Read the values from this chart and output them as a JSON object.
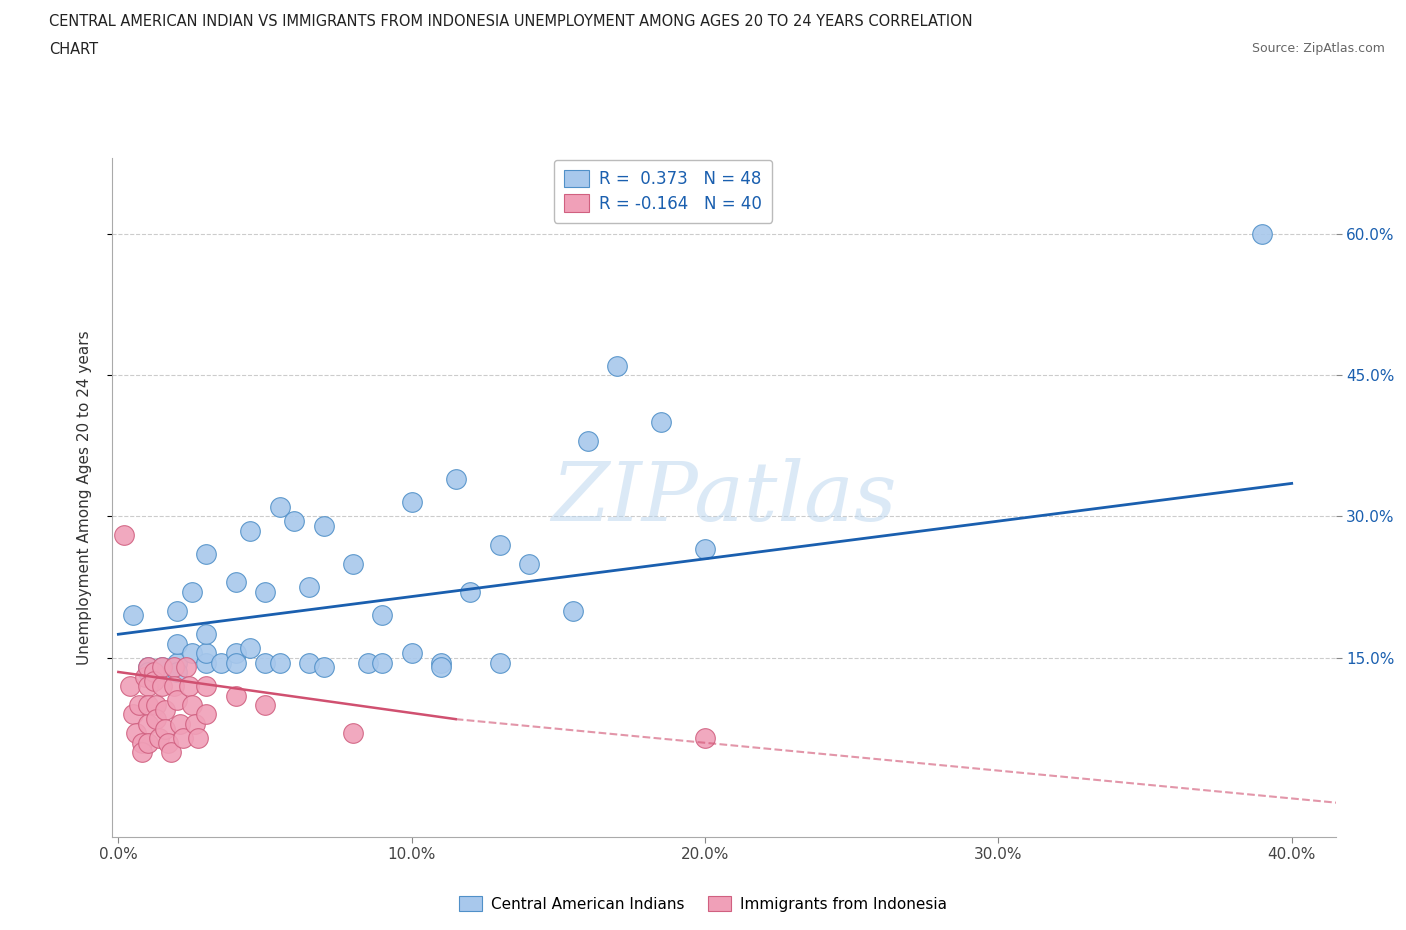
{
  "title_line1": "CENTRAL AMERICAN INDIAN VS IMMIGRANTS FROM INDONESIA UNEMPLOYMENT AMONG AGES 20 TO 24 YEARS CORRELATION",
  "title_line2": "CHART",
  "source": "Source: ZipAtlas.com",
  "ylabel": "Unemployment Among Ages 20 to 24 years",
  "xlim": [
    -0.002,
    0.415
  ],
  "ylim": [
    -0.04,
    0.68
  ],
  "xticks": [
    0.0,
    0.1,
    0.2,
    0.3,
    0.4
  ],
  "xticklabels": [
    "0.0%",
    "10.0%",
    "20.0%",
    "30.0%",
    "40.0%"
  ],
  "yticks": [
    0.15,
    0.3,
    0.45,
    0.6
  ],
  "yticklabels": [
    "15.0%",
    "30.0%",
    "45.0%",
    "60.0%"
  ],
  "legend_r1": "R =  0.373   N = 48",
  "legend_r2": "R = -0.164   N = 40",
  "blue_color": "#A8C8EC",
  "blue_edge_color": "#5090C8",
  "pink_color": "#F0A0B8",
  "pink_edge_color": "#D06080",
  "blue_line_color": "#1A5FAF",
  "pink_line_color": "#D05070",
  "watermark": "ZIPatlas",
  "legend_text_color": "#1A5FAF",
  "blue_scatter": [
    [
      0.005,
      0.195
    ],
    [
      0.01,
      0.14
    ],
    [
      0.01,
      0.135
    ],
    [
      0.015,
      0.14
    ],
    [
      0.02,
      0.2
    ],
    [
      0.02,
      0.145
    ],
    [
      0.02,
      0.135
    ],
    [
      0.02,
      0.165
    ],
    [
      0.025,
      0.22
    ],
    [
      0.025,
      0.155
    ],
    [
      0.03,
      0.26
    ],
    [
      0.03,
      0.145
    ],
    [
      0.03,
      0.155
    ],
    [
      0.03,
      0.175
    ],
    [
      0.035,
      0.145
    ],
    [
      0.04,
      0.23
    ],
    [
      0.04,
      0.155
    ],
    [
      0.04,
      0.145
    ],
    [
      0.045,
      0.16
    ],
    [
      0.045,
      0.285
    ],
    [
      0.05,
      0.22
    ],
    [
      0.05,
      0.145
    ],
    [
      0.055,
      0.31
    ],
    [
      0.055,
      0.145
    ],
    [
      0.06,
      0.295
    ],
    [
      0.065,
      0.145
    ],
    [
      0.065,
      0.225
    ],
    [
      0.07,
      0.29
    ],
    [
      0.07,
      0.14
    ],
    [
      0.08,
      0.25
    ],
    [
      0.085,
      0.145
    ],
    [
      0.09,
      0.195
    ],
    [
      0.09,
      0.145
    ],
    [
      0.1,
      0.315
    ],
    [
      0.1,
      0.155
    ],
    [
      0.11,
      0.145
    ],
    [
      0.11,
      0.14
    ],
    [
      0.115,
      0.34
    ],
    [
      0.12,
      0.22
    ],
    [
      0.13,
      0.145
    ],
    [
      0.13,
      0.27
    ],
    [
      0.14,
      0.25
    ],
    [
      0.155,
      0.2
    ],
    [
      0.16,
      0.38
    ],
    [
      0.17,
      0.46
    ],
    [
      0.185,
      0.4
    ],
    [
      0.2,
      0.265
    ],
    [
      0.39,
      0.6
    ]
  ],
  "pink_scatter": [
    [
      0.002,
      0.28
    ],
    [
      0.004,
      0.12
    ],
    [
      0.005,
      0.09
    ],
    [
      0.006,
      0.07
    ],
    [
      0.007,
      0.1
    ],
    [
      0.008,
      0.06
    ],
    [
      0.008,
      0.05
    ],
    [
      0.009,
      0.13
    ],
    [
      0.01,
      0.14
    ],
    [
      0.01,
      0.12
    ],
    [
      0.01,
      0.1
    ],
    [
      0.01,
      0.08
    ],
    [
      0.01,
      0.06
    ],
    [
      0.012,
      0.135
    ],
    [
      0.012,
      0.125
    ],
    [
      0.013,
      0.1
    ],
    [
      0.013,
      0.085
    ],
    [
      0.014,
      0.065
    ],
    [
      0.015,
      0.14
    ],
    [
      0.015,
      0.12
    ],
    [
      0.016,
      0.095
    ],
    [
      0.016,
      0.075
    ],
    [
      0.017,
      0.06
    ],
    [
      0.018,
      0.05
    ],
    [
      0.019,
      0.14
    ],
    [
      0.019,
      0.12
    ],
    [
      0.02,
      0.105
    ],
    [
      0.021,
      0.08
    ],
    [
      0.022,
      0.065
    ],
    [
      0.023,
      0.14
    ],
    [
      0.024,
      0.12
    ],
    [
      0.025,
      0.1
    ],
    [
      0.026,
      0.08
    ],
    [
      0.027,
      0.065
    ],
    [
      0.03,
      0.12
    ],
    [
      0.03,
      0.09
    ],
    [
      0.04,
      0.11
    ],
    [
      0.05,
      0.1
    ],
    [
      0.08,
      0.07
    ],
    [
      0.2,
      0.065
    ]
  ],
  "blue_trend": {
    "x_start": 0.0,
    "x_end": 0.4,
    "y_start": 0.175,
    "y_end": 0.335
  },
  "pink_trend_solid": {
    "x_start": 0.0,
    "x_end": 0.115,
    "y_start": 0.135,
    "y_end": 0.085
  },
  "pink_trend_dashed": {
    "x_start": 0.115,
    "x_end": 0.42,
    "y_start": 0.085,
    "y_end": -0.005
  }
}
